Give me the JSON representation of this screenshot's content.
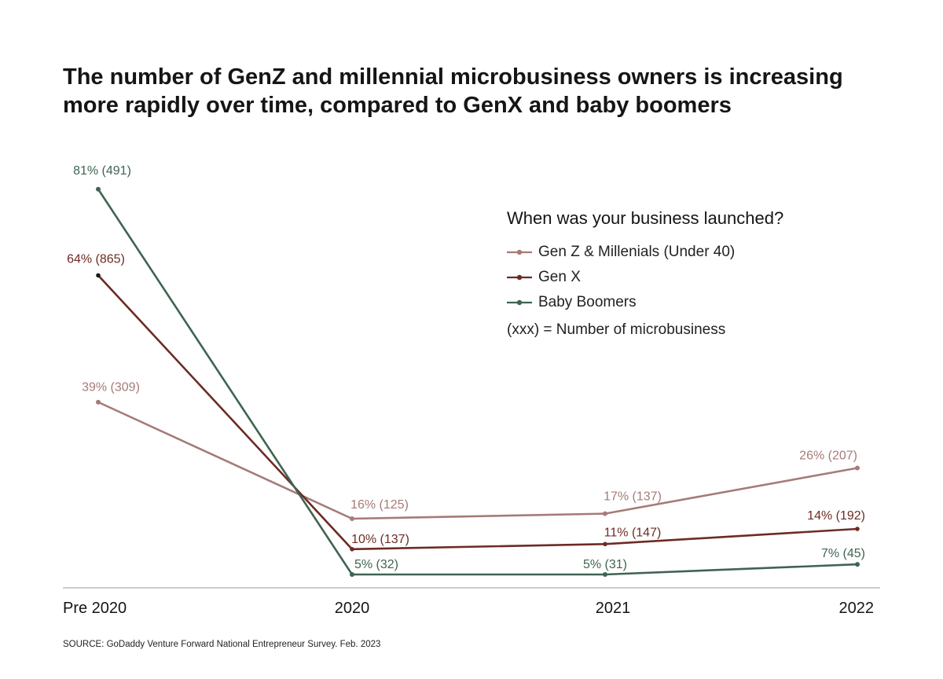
{
  "title_lines": [
    "The number of GenZ and millennial microbusiness owners is increasing",
    "more rapidly over time, compared to GenX and baby boomers"
  ],
  "legend": {
    "title": "When was your business launched?",
    "note": "(xxx) = Number of microbusiness"
  },
  "source": "SOURCE: GoDaddy Venture Forward National Entrepreneur Survey. Feb. 2023",
  "chart_data": {
    "type": "line",
    "title": "The number of GenZ and millennial microbusiness owners is increasing more rapidly over time, compared to GenX and baby boomers",
    "categories": [
      "Pre 2020",
      "2020",
      "2021",
      "2022"
    ],
    "ylim": [
      0,
      90
    ],
    "xlabel": "",
    "ylabel": "",
    "grid": false,
    "legend_position": "right",
    "series": [
      {
        "name": "Gen Z & Millenials (Under 40)",
        "color": "#a57b78",
        "values": [
          39,
          16,
          17,
          26
        ],
        "labels": [
          "39% (309)",
          "16% (125)",
          "17% (137)",
          "26% (207)"
        ]
      },
      {
        "name": "Gen X",
        "color": "#6d2b24",
        "values": [
          64,
          10,
          11,
          14
        ],
        "labels": [
          "64% (865)",
          "10% (137)",
          "11% (147)",
          "14% (192)"
        ]
      },
      {
        "name": "Baby Boomers",
        "color": "#3f6451",
        "values": [
          81,
          5,
          5,
          7
        ],
        "labels": [
          "81% (491)",
          "5% (32)",
          "5% (31)",
          "7% (45)"
        ]
      }
    ]
  }
}
